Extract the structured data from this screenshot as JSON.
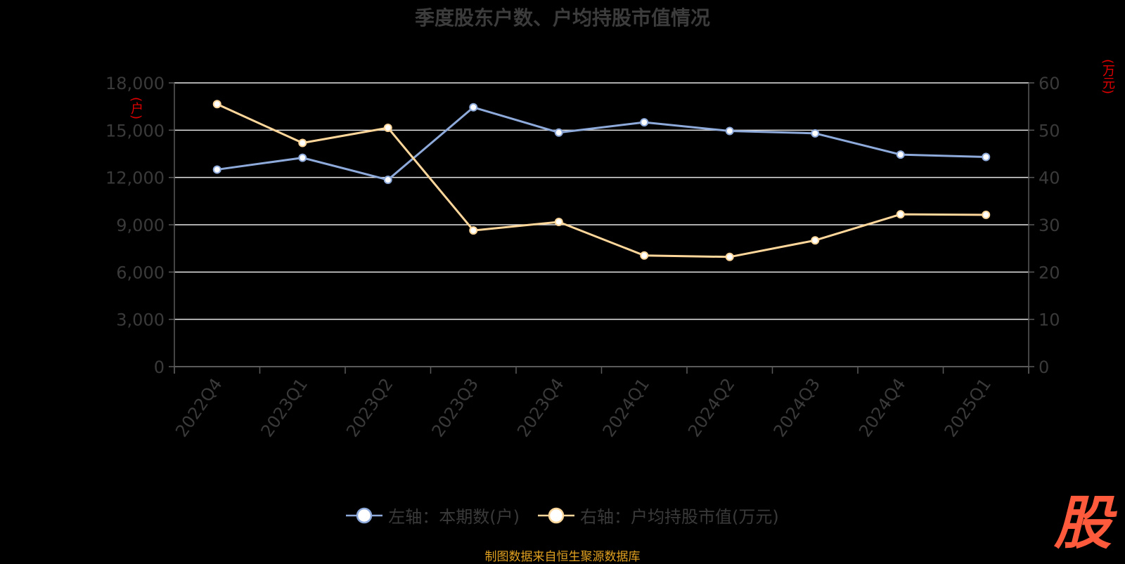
{
  "chart_data": {
    "type": "line",
    "title": "季度股东户数、户均持股市值情况",
    "categories": [
      "2022Q4",
      "2023Q1",
      "2023Q2",
      "2023Q3",
      "2023Q4",
      "2024Q1",
      "2024Q2",
      "2024Q3",
      "2024Q4",
      "2025Q1"
    ],
    "series": [
      {
        "name": "左轴：本期数(户)",
        "axis": "left",
        "color": "#8eaadb",
        "values": [
          12500,
          13250,
          11850,
          16450,
          14850,
          15500,
          14950,
          14800,
          13450,
          13300
        ]
      },
      {
        "name": "右轴：户均持股市值(万元)",
        "axis": "right",
        "color": "#ffd79b",
        "values": [
          55.5,
          47.3,
          50.5,
          28.8,
          30.6,
          23.5,
          23.2,
          26.7,
          32.2,
          32.1
        ]
      }
    ],
    "y_left": {
      "unit": "户",
      "ylim": [
        0,
        18000
      ],
      "ticks": [
        0,
        3000,
        6000,
        9000,
        12000,
        15000,
        18000
      ],
      "tick_labels": [
        "0",
        "3,000",
        "6,000",
        "9,000",
        "12,000",
        "15,000",
        "18,000"
      ]
    },
    "y_right": {
      "unit": "万元",
      "ylim": [
        0,
        60
      ],
      "ticks": [
        0,
        10,
        20,
        30,
        40,
        50,
        60
      ],
      "tick_labels": [
        "0",
        "10",
        "20",
        "30",
        "40",
        "50",
        "60"
      ]
    },
    "grid": true,
    "legend_position": "bottom-center"
  },
  "units": {
    "left": "(户)",
    "right": "(万元)"
  },
  "footer": "制图数据来自恒生聚源数据库",
  "logo_text": "股",
  "colors": {
    "background": "#000000",
    "grid": "#e6e6e6",
    "axis": "#5a5a5a",
    "tick_label": "#3a3a3a",
    "unit": "#e00000",
    "footer": "#e0a020",
    "logo": "#ff5a3c"
  }
}
